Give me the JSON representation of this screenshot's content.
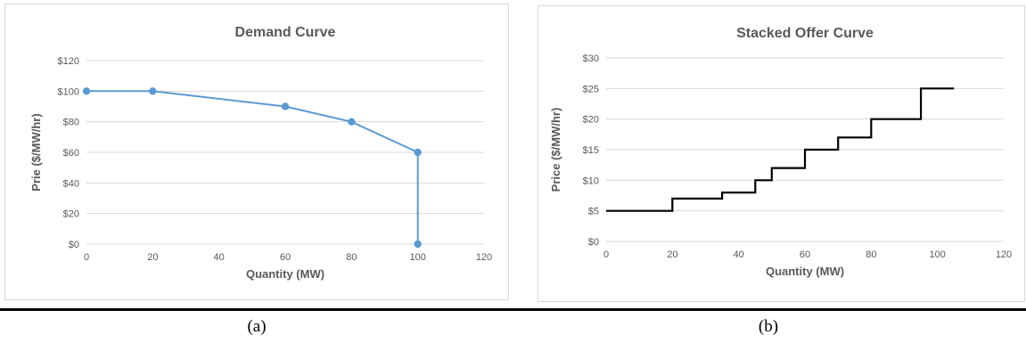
{
  "captions": {
    "a": "(a)",
    "b": "(b)"
  },
  "chart_data": [
    {
      "type": "line",
      "title": "Demand Curve",
      "xlabel": "Quantity (MW)",
      "ylabel": "Prie ($/MW/hr)",
      "xlim": [
        0,
        120
      ],
      "ylim": [
        0,
        120
      ],
      "xticks": [
        "0",
        "20",
        "40",
        "60",
        "80",
        "100",
        "120"
      ],
      "yticks": [
        "$0",
        "$20",
        "$40",
        "$60",
        "$80",
        "$100",
        "$120"
      ],
      "grid": "horizontal",
      "color": "#5b9bd5",
      "markers": true,
      "x": [
        0,
        20,
        60,
        80,
        100,
        100
      ],
      "y": [
        100,
        100,
        90,
        80,
        60,
        0
      ]
    },
    {
      "type": "line",
      "title": "Stacked Offer Curve",
      "xlabel": "Quantity (MW)",
      "ylabel": "Price ($/MW/hr)",
      "xlim": [
        0,
        120
      ],
      "ylim": [
        0,
        30
      ],
      "xticks": [
        "0",
        "20",
        "40",
        "60",
        "80",
        "100",
        "120"
      ],
      "yticks": [
        "$0",
        "$5",
        "$10",
        "$15",
        "$20",
        "$25",
        "$30"
      ],
      "grid": "horizontal",
      "color": "#000000",
      "markers": false,
      "step": true,
      "x": [
        0,
        20,
        20,
        35,
        35,
        45,
        45,
        50,
        50,
        60,
        60,
        70,
        70,
        80,
        80,
        95,
        95,
        105
      ],
      "y": [
        5,
        5,
        7,
        7,
        8,
        8,
        10,
        10,
        12,
        12,
        15,
        15,
        17,
        17,
        20,
        20,
        25,
        25
      ]
    }
  ]
}
